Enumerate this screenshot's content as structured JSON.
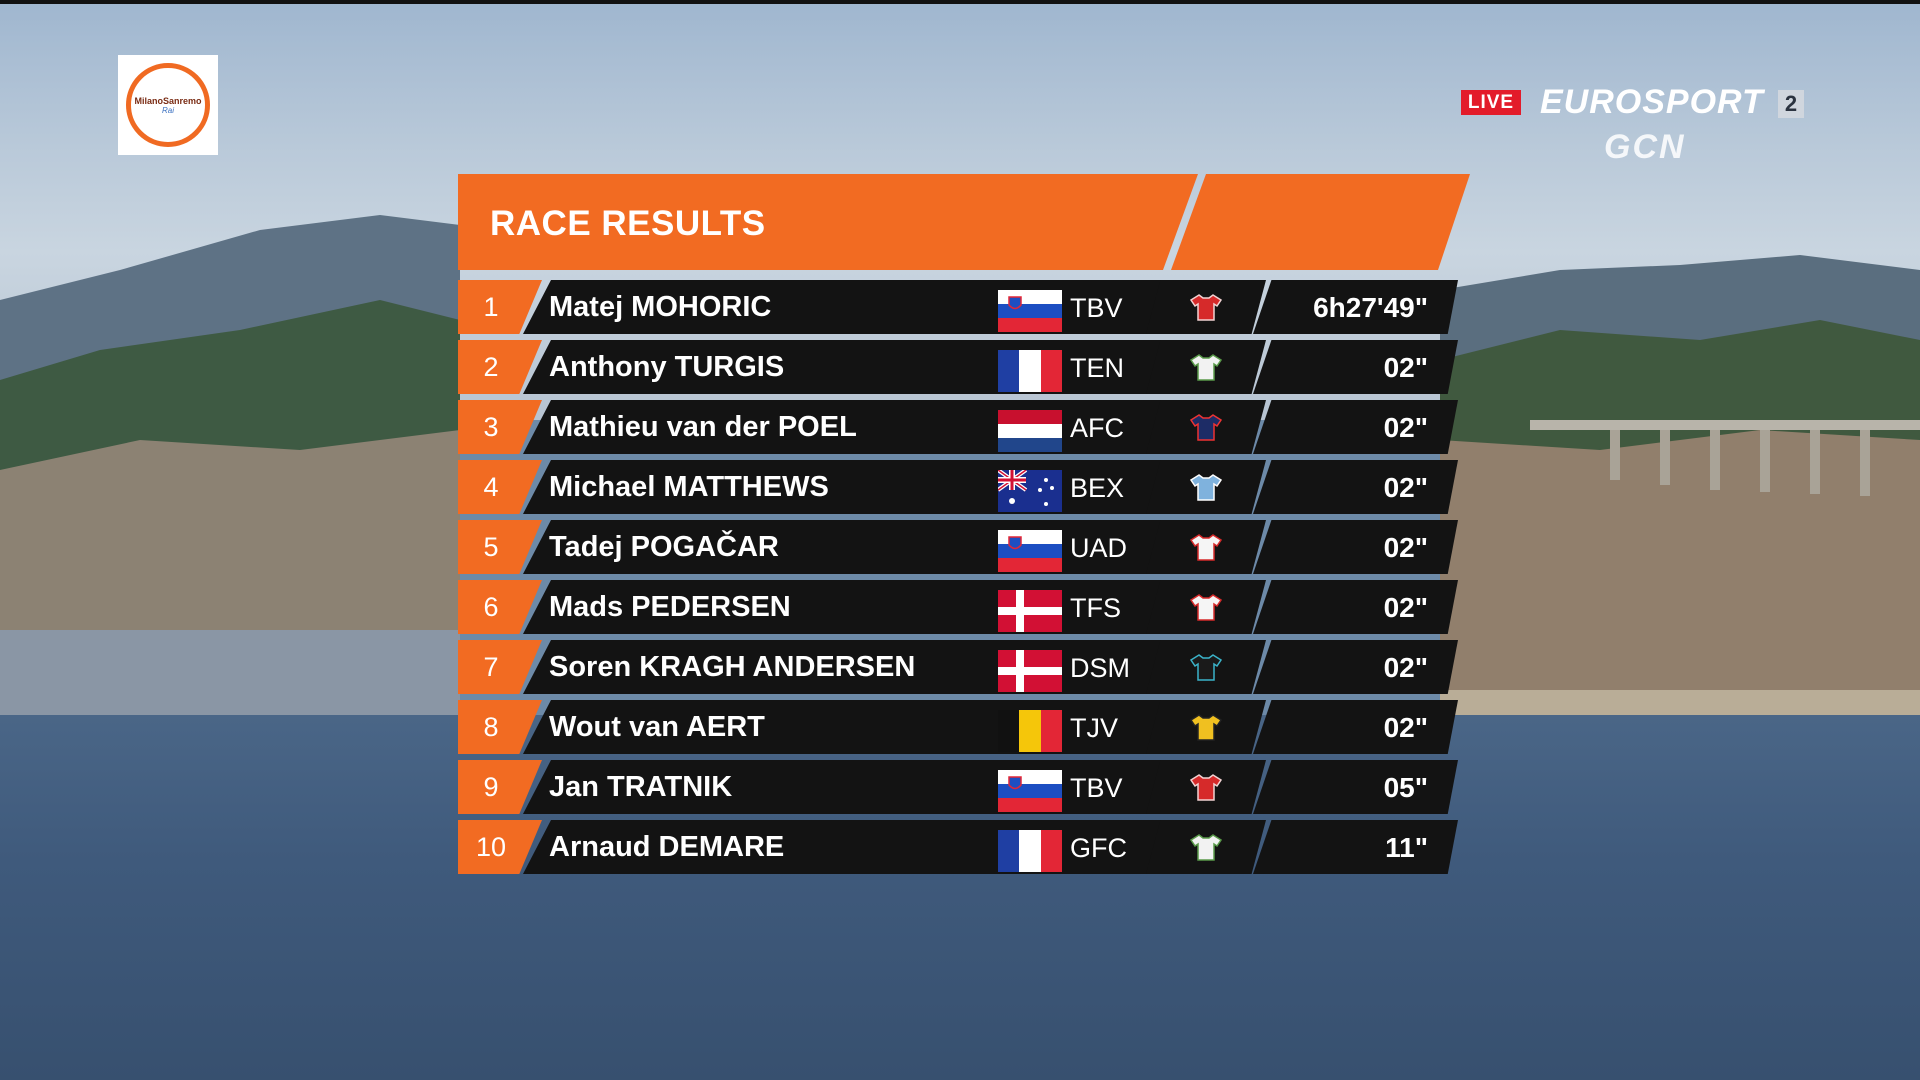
{
  "branding": {
    "race_logo_text": "MilanoSanremo",
    "race_logo_sub": "Rai",
    "live_label": "LIVE",
    "channel_name": "EUROSPORT",
    "channel_number": "2",
    "partner_name": "GCN"
  },
  "results": {
    "title": "RACE RESULTS",
    "accent_color": "#f26b22",
    "rows": [
      {
        "position": "1",
        "name": "Matej MOHORIC",
        "flag": "slovenia",
        "team": "TBV",
        "jersey": "red-jersey-icon",
        "time": "6h27'49\""
      },
      {
        "position": "2",
        "name": "Anthony TURGIS",
        "flag": "france",
        "team": "TEN",
        "jersey": "white-jersey-icon",
        "time": "02\""
      },
      {
        "position": "3",
        "name": "Mathieu van der POEL",
        "flag": "netherlands",
        "team": "AFC",
        "jersey": "navy-jersey-icon",
        "time": "02\""
      },
      {
        "position": "4",
        "name": "Michael MATTHEWS",
        "flag": "australia",
        "team": "BEX",
        "jersey": "blue-jersey-icon",
        "time": "02\""
      },
      {
        "position": "5",
        "name": "Tadej POGAČAR",
        "flag": "slovenia",
        "team": "UAD",
        "jersey": "white-red-jersey-icon",
        "time": "02\""
      },
      {
        "position": "6",
        "name": "Mads PEDERSEN",
        "flag": "denmark",
        "team": "TFS",
        "jersey": "white-red-jersey-icon",
        "time": "02\""
      },
      {
        "position": "7",
        "name": "Soren KRAGH ANDERSEN",
        "flag": "denmark",
        "team": "DSM",
        "jersey": "black-jersey-icon",
        "time": "02\""
      },
      {
        "position": "8",
        "name": "Wout van AERT",
        "flag": "belgium",
        "team": "TJV",
        "jersey": "yellow-jersey-icon",
        "time": "02\""
      },
      {
        "position": "9",
        "name": "Jan TRATNIK",
        "flag": "slovenia",
        "team": "TBV",
        "jersey": "red-jersey-icon",
        "time": "05\""
      },
      {
        "position": "10",
        "name": "Arnaud DEMARE",
        "flag": "france",
        "team": "GFC",
        "jersey": "white-jersey-icon",
        "time": "11\""
      }
    ]
  }
}
